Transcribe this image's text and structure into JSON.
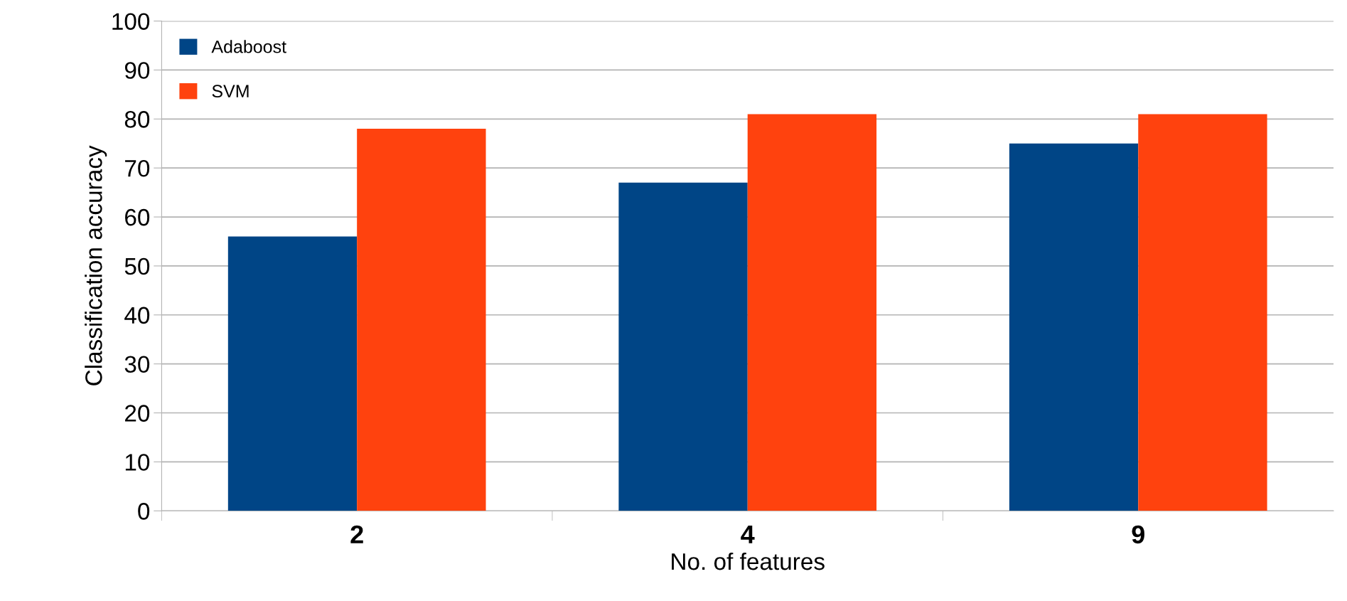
{
  "chart_data": {
    "type": "bar",
    "xlabel": "No. of features",
    "ylabel": "Classification accuracy",
    "categories": [
      "2",
      "4",
      "9"
    ],
    "series": [
      {
        "name": "Adaboost",
        "color": "#004586",
        "values": [
          56,
          67,
          75
        ]
      },
      {
        "name": "SVM",
        "color": "#ff420e",
        "values": [
          78,
          81,
          81
        ]
      }
    ],
    "ylim": [
      0,
      100
    ],
    "yticks": [
      0,
      10,
      20,
      30,
      40,
      50,
      60,
      70,
      80,
      90,
      100
    ],
    "grid": "y",
    "legend": "top left"
  }
}
